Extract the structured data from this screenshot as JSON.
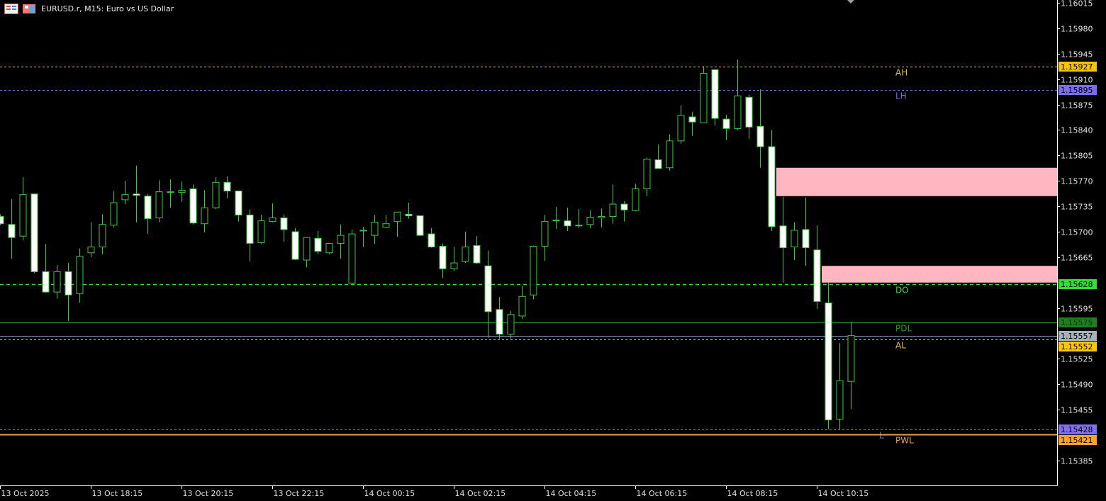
{
  "header": {
    "title": "EURUSD.r, M15:  Euro vs US Dollar",
    "icons": [
      "market-watch-icon",
      "chart-window-icon"
    ]
  },
  "chart_data": {
    "type": "candlestick",
    "symbol": "EURUSD.r",
    "timeframe": "M15",
    "description": "Euro vs US Dollar",
    "first_candle_time": "13 Oct 2025 16:15",
    "ylim": [
      1.15355,
      1.1602
    ],
    "grid": false,
    "colors": {
      "background": "#000000",
      "candle_outline": "#3cc83c",
      "bull_body": "#000000",
      "bear_body": "#ffffff",
      "axis": "#ffffff",
      "axis_text": "#e0e0e0"
    },
    "candles_ohlc": [
      [
        1.15721,
        1.15724,
        1.15709,
        1.15711
      ],
      [
        1.1571,
        1.15745,
        1.15663,
        1.15692
      ],
      [
        1.15694,
        1.15775,
        1.15688,
        1.15751
      ],
      [
        1.15752,
        1.15752,
        1.15643,
        1.15645
      ],
      [
        1.15645,
        1.15683,
        1.15616,
        1.15617
      ],
      [
        1.15617,
        1.15654,
        1.15608,
        1.15645
      ],
      [
        1.15645,
        1.15657,
        1.15577,
        1.15613
      ],
      [
        1.15615,
        1.15677,
        1.15602,
        1.15666
      ],
      [
        1.15671,
        1.15713,
        1.15665,
        1.15679
      ],
      [
        1.15679,
        1.15724,
        1.15669,
        1.1571
      ],
      [
        1.15709,
        1.15756,
        1.15706,
        1.1574
      ],
      [
        1.15744,
        1.1577,
        1.15738,
        1.15751
      ],
      [
        1.15752,
        1.15791,
        1.15713,
        1.1575
      ],
      [
        1.15749,
        1.15752,
        1.15697,
        1.15718
      ],
      [
        1.15719,
        1.15771,
        1.15713,
        1.15755
      ],
      [
        1.15754,
        1.15772,
        1.15733,
        1.15755
      ],
      [
        1.15754,
        1.15769,
        1.15741,
        1.15757
      ],
      [
        1.15759,
        1.15765,
        1.1571,
        1.15712
      ],
      [
        1.15711,
        1.15757,
        1.15699,
        1.15733
      ],
      [
        1.15733,
        1.15775,
        1.15731,
        1.15768
      ],
      [
        1.15768,
        1.15776,
        1.15746,
        1.15756
      ],
      [
        1.15756,
        1.15756,
        1.15714,
        1.15723
      ],
      [
        1.15723,
        1.15731,
        1.15659,
        1.15684
      ],
      [
        1.15685,
        1.15723,
        1.15683,
        1.15715
      ],
      [
        1.15714,
        1.15739,
        1.15713,
        1.15719
      ],
      [
        1.15719,
        1.15724,
        1.15686,
        1.15703
      ],
      [
        1.157,
        1.15705,
        1.15661,
        1.15662
      ],
      [
        1.15661,
        1.15692,
        1.15651,
        1.15692
      ],
      [
        1.15691,
        1.15701,
        1.15669,
        1.15673
      ],
      [
        1.15671,
        1.15684,
        1.15669,
        1.15684
      ],
      [
        1.15684,
        1.1571,
        1.15663,
        1.15695
      ],
      [
        1.15629,
        1.15703,
        1.15629,
        1.15697
      ],
      [
        1.15701,
        1.15707,
        1.15679,
        1.15702
      ],
      [
        1.15695,
        1.15723,
        1.15683,
        1.15713
      ],
      [
        1.15706,
        1.15723,
        1.15705,
        1.15711
      ],
      [
        1.15714,
        1.15727,
        1.15693,
        1.15727
      ],
      [
        1.15724,
        1.1574,
        1.15718,
        1.15722
      ],
      [
        1.15722,
        1.15722,
        1.15694,
        1.15695
      ],
      [
        1.15697,
        1.15705,
        1.15678,
        1.15679
      ],
      [
        1.1568,
        1.15684,
        1.15636,
        1.15649
      ],
      [
        1.15649,
        1.15679,
        1.15646,
        1.15657
      ],
      [
        1.15659,
        1.157,
        1.15657,
        1.15679
      ],
      [
        1.15681,
        1.15694,
        1.15656,
        1.15657
      ],
      [
        1.15653,
        1.15674,
        1.15554,
        1.1559
      ],
      [
        1.15593,
        1.1561,
        1.15553,
        1.15559
      ],
      [
        1.15559,
        1.15591,
        1.15553,
        1.15586
      ],
      [
        1.15584,
        1.15625,
        1.1558,
        1.15611
      ],
      [
        1.15613,
        1.15681,
        1.15607,
        1.1568
      ],
      [
        1.1568,
        1.15723,
        1.1566,
        1.15714
      ],
      [
        1.15715,
        1.15734,
        1.15704,
        1.15716
      ],
      [
        1.15715,
        1.15733,
        1.15701,
        1.15708
      ],
      [
        1.15709,
        1.15731,
        1.15705,
        1.15708
      ],
      [
        1.1571,
        1.1573,
        1.15705,
        1.1572
      ],
      [
        1.15719,
        1.15732,
        1.15706,
        1.15721
      ],
      [
        1.15721,
        1.15765,
        1.15711,
        1.15738
      ],
      [
        1.15738,
        1.15742,
        1.15714,
        1.1573
      ],
      [
        1.15729,
        1.15766,
        1.15728,
        1.15759
      ],
      [
        1.15759,
        1.15802,
        1.15749,
        1.158
      ],
      [
        1.15799,
        1.1582,
        1.15787,
        1.15787
      ],
      [
        1.15788,
        1.15834,
        1.15784,
        1.15825
      ],
      [
        1.15825,
        1.15874,
        1.15821,
        1.1586
      ],
      [
        1.15858,
        1.15865,
        1.15832,
        1.15851
      ],
      [
        1.1585,
        1.15928,
        1.1585,
        1.15918
      ],
      [
        1.15923,
        1.15923,
        1.15846,
        1.15856
      ],
      [
        1.15855,
        1.15861,
        1.15826,
        1.15842
      ],
      [
        1.15842,
        1.15937,
        1.1584,
        1.15887
      ],
      [
        1.15885,
        1.15889,
        1.15828,
        1.15844
      ],
      [
        1.15845,
        1.15896,
        1.15788,
        1.15817
      ],
      [
        1.15817,
        1.1584,
        1.15701,
        1.15707
      ],
      [
        1.15708,
        1.15748,
        1.1563,
        1.15678
      ],
      [
        1.15679,
        1.15713,
        1.15661,
        1.15702
      ],
      [
        1.15703,
        1.15747,
        1.15653,
        1.15678
      ],
      [
        1.15675,
        1.15709,
        1.15594,
        1.15604
      ],
      [
        1.15602,
        1.1563,
        1.15428,
        1.15441
      ],
      [
        1.15442,
        1.15547,
        1.15428,
        1.15495
      ],
      [
        1.15494,
        1.15576,
        1.15456,
        1.15557
      ]
    ],
    "y_ticks": [
      "1.16015",
      "1.15980",
      "1.15945",
      "1.15910",
      "1.15875",
      "1.15840",
      "1.15805",
      "1.15770",
      "1.15735",
      "1.15700",
      "1.15665",
      "1.15595",
      "1.15525",
      "1.15490",
      "1.15455",
      "1.15385"
    ],
    "x_ticks": [
      {
        "candle": 0,
        "label": "13 Oct 2025"
      },
      {
        "candle": 8,
        "label": "13 Oct 18:15"
      },
      {
        "candle": 16,
        "label": "13 Oct 20:15"
      },
      {
        "candle": 24,
        "label": "13 Oct 22:15"
      },
      {
        "candle": 32,
        "label": "14 Oct 00:15"
      },
      {
        "candle": 40,
        "label": "14 Oct 02:15"
      },
      {
        "candle": 48,
        "label": "14 Oct 04:15"
      },
      {
        "candle": 56,
        "label": "14 Oct 06:15"
      },
      {
        "candle": 64,
        "label": "14 Oct 08:15"
      },
      {
        "candle": 72,
        "label": "14 Oct 10:15"
      }
    ],
    "levels": [
      {
        "label": "AH",
        "price": 1.15927,
        "tag": "1.15927",
        "color": "#e0c050",
        "tag_bg": "#f5c400",
        "tag_fg": "#000000",
        "style": "dashed"
      },
      {
        "label": "LH",
        "price": 1.15895,
        "tag": "1.15895",
        "color": "#6f6fd8",
        "tag_bg": "#7b6cf0",
        "tag_fg": "#000000",
        "style": "dashed"
      },
      {
        "label": "DO",
        "price": 1.15628,
        "tag": "1.15628",
        "color": "#40d040",
        "tag_bg": "#33dd33",
        "tag_fg": "#000000",
        "style": "dashed-bold"
      },
      {
        "label": "PDL",
        "price": 1.15575,
        "tag": "1.15575",
        "color": "#2e9a2e",
        "tag_bg": "#1f7f1f",
        "tag_fg": "#0a2a0a",
        "style": "solid"
      },
      {
        "label": "",
        "price": 1.15557,
        "tag": "1.15557",
        "color": "#8090a8",
        "tag_bg": "#a8b0b8",
        "tag_fg": "#000000",
        "style": "solid"
      },
      {
        "label": "AL",
        "price": 1.15552,
        "tag": "1.15552",
        "color": "#e8c060",
        "tag_bg": "#ffc800",
        "tag_fg": "#000000",
        "style": "dashed"
      },
      {
        "label": "L",
        "price": 1.15428,
        "tag": "1.15428",
        "color": "#7070d0",
        "tag_bg": "#8070f0",
        "tag_fg": "#000000",
        "style": "dashed"
      },
      {
        "label": "PWL",
        "price": 1.15421,
        "tag": "1.15421",
        "color": "#f0a050",
        "tag_bg": "#f5a623",
        "tag_fg": "#000000",
        "style": "solid"
      }
    ],
    "zones": [
      {
        "from_candle": 68,
        "top": 1.15788,
        "bottom": 1.15749,
        "color": "#ffb6c1"
      },
      {
        "from_candle": 72,
        "top": 1.15653,
        "bottom": 1.1563,
        "color": "#ffb6c1"
      }
    ]
  }
}
